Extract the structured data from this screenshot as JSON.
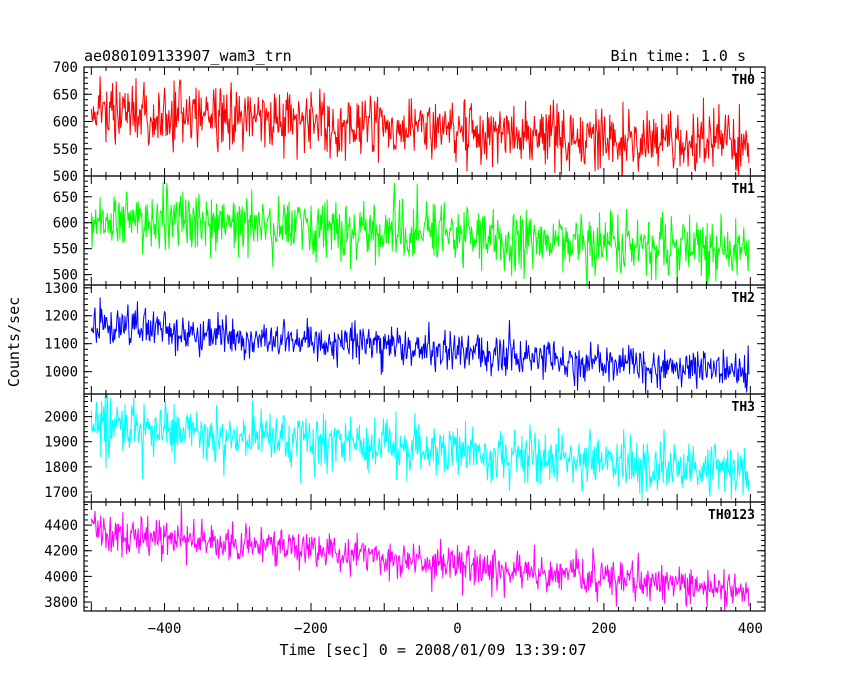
{
  "header": {
    "left_title": "ae080109133907_wam3_trn",
    "right_title": "Bin time: 1.0 s"
  },
  "axes": {
    "xlabel": "Time [sec] 0 = 2008/01/09 13:39:07",
    "ylabel": "Counts/sec"
  },
  "chart_data": {
    "type": "line",
    "x_range": [
      -510,
      420
    ],
    "x_ticks": [
      -400,
      -200,
      0,
      200,
      400
    ],
    "x_tick_labels": [
      "−400",
      "−200",
      "0",
      "200",
      "400"
    ],
    "bin_time_s": 1.0,
    "series": [
      {
        "name": "TH0",
        "color": "#ff0000",
        "ylim": [
          500,
          700
        ],
        "yticks": [
          500,
          550,
          600,
          650,
          700
        ],
        "trend_start": 618,
        "trend_end": 558,
        "noise": 28,
        "x_start": -500,
        "x_end": 398
      },
      {
        "name": "TH1",
        "color": "#00ff00",
        "ylim": [
          480,
          690
        ],
        "yticks": [
          500,
          550,
          600,
          650
        ],
        "trend_start": 610,
        "trend_end": 548,
        "noise": 30,
        "x_start": -500,
        "x_end": 398
      },
      {
        "name": "TH2",
        "color": "#0000ff",
        "ylim": [
          920,
          1310
        ],
        "yticks": [
          1000,
          1100,
          1200,
          1300
        ],
        "trend_start": 1165,
        "trend_end": 995,
        "noise": 35,
        "x_start": -500,
        "x_end": 398
      },
      {
        "name": "TH3",
        "color": "#00ffff",
        "ylim": [
          1660,
          2090
        ],
        "yticks": [
          1700,
          1800,
          1900,
          2000
        ],
        "trend_start": 1965,
        "trend_end": 1780,
        "noise": 55,
        "x_start": -500,
        "x_end": 398
      },
      {
        "name": "TH0123",
        "color": "#ff00ff",
        "ylim": [
          3730,
          4580
        ],
        "yticks": [
          3800,
          4000,
          4200,
          4400
        ],
        "trend_start": 4360,
        "trend_end": 3880,
        "noise": 75,
        "x_start": -500,
        "x_end": 398
      }
    ]
  }
}
